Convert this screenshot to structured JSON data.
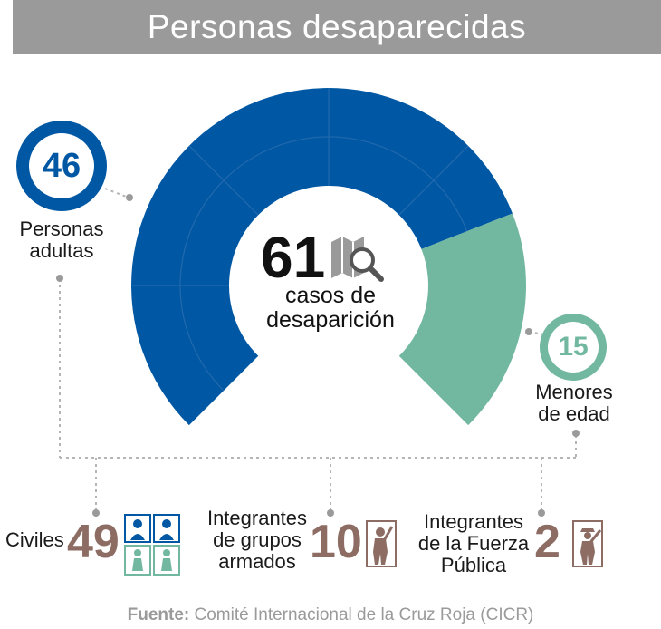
{
  "title": "Personas desaparecidas",
  "center": {
    "total": "61",
    "label_line1": "casos de",
    "label_line2": "desaparición"
  },
  "adults": {
    "value": "46",
    "label_line1": "Personas",
    "label_line2": "adultas"
  },
  "minors": {
    "value": "15",
    "label_line1": "Menores",
    "label_line2": "de edad"
  },
  "breakdown": {
    "civiles": {
      "label": "Civiles",
      "value": "49"
    },
    "armed": {
      "label_line1": "Integrantes",
      "label_line2": "de grupos",
      "label_line3": "armados",
      "value": "10"
    },
    "public_force": {
      "label_line1": "Integrantes",
      "label_line2": "de la Fuerza",
      "label_line3": "Pública",
      "value": "2"
    }
  },
  "source": {
    "prefix": "Fuente:",
    "text": " Comité Internacional de la Cruz Roja (CICR)"
  },
  "colors": {
    "adults": "#0057a3",
    "minors": "#72b8a0",
    "numbers": "#8c6c63",
    "title_bg": "#9a9a9a"
  },
  "icons": {
    "center": "map-search-icon",
    "civiles": "people-cards-icon",
    "armed": "armed-person-icon",
    "public_force": "soldier-icon"
  },
  "chart_data": {
    "type": "pie",
    "total": 61,
    "slices": [
      {
        "label": "Personas adultas",
        "value": 46,
        "color": "#0057a3"
      },
      {
        "label": "Menores de edad",
        "value": 15,
        "color": "#72b8a0"
      }
    ]
  }
}
